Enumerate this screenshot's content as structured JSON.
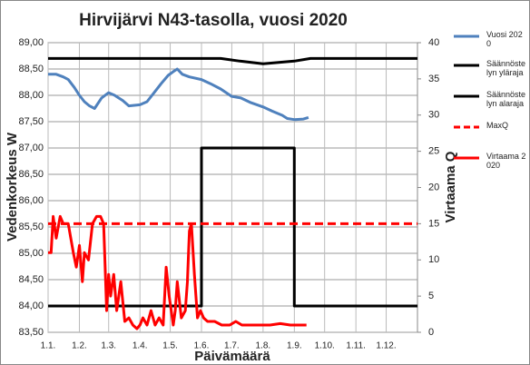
{
  "chart_data": {
    "type": "line",
    "title": "Hirvijärvi  N43-tasolla,  vuosi 2020",
    "x_label": "Päivämäärä",
    "y_label": "Vedenkorkeus W",
    "y2_label": "Virtaama Q",
    "xlim": [
      0,
      366
    ],
    "xticks": [
      {
        "value": 0,
        "label": "1.1."
      },
      {
        "value": 31,
        "label": "1.2."
      },
      {
        "value": 60,
        "label": "1.3."
      },
      {
        "value": 91,
        "label": "1.4."
      },
      {
        "value": 121,
        "label": "1.5."
      },
      {
        "value": 152,
        "label": "1.6."
      },
      {
        "value": 182,
        "label": "1.7."
      },
      {
        "value": 213,
        "label": "1.8."
      },
      {
        "value": 244,
        "label": "1.9."
      },
      {
        "value": 274,
        "label": "1.10."
      },
      {
        "value": 305,
        "label": "1.11."
      },
      {
        "value": 335,
        "label": "1.12."
      }
    ],
    "ylim": [
      83.5,
      89
    ],
    "yticks": [
      {
        "value": 83.5,
        "label": "83,50"
      },
      {
        "value": 84,
        "label": "84,00"
      },
      {
        "value": 84.5,
        "label": "84,50"
      },
      {
        "value": 85,
        "label": "85,00"
      },
      {
        "value": 85.5,
        "label": "85,50"
      },
      {
        "value": 86,
        "label": "86,00"
      },
      {
        "value": 86.5,
        "label": "86,50"
      },
      {
        "value": 87,
        "label": "87,00"
      },
      {
        "value": 87.5,
        "label": "87,50"
      },
      {
        "value": 88,
        "label": "88,00"
      },
      {
        "value": 88.5,
        "label": "88,50"
      },
      {
        "value": 89,
        "label": "89,00"
      }
    ],
    "y2lim": [
      0,
      40
    ],
    "y2ticks": [
      0,
      5,
      10,
      15,
      20,
      25,
      30,
      35,
      40
    ],
    "grid": true,
    "series": [
      {
        "name": "Vuosi 2020",
        "color": "#4f81bd",
        "axis": "y",
        "x": [
          0,
          8,
          15,
          20,
          26,
          31,
          36,
          41,
          46,
          53,
          60,
          66,
          70,
          74,
          80,
          91,
          98,
          105,
          112,
          119,
          124,
          128,
          133,
          140,
          152,
          161,
          171,
          182,
          191,
          201,
          213,
          222,
          232,
          237,
          244,
          253,
          258
        ],
        "values": [
          88.4,
          88.4,
          88.35,
          88.3,
          88.15,
          88.0,
          87.88,
          87.8,
          87.75,
          87.95,
          88.05,
          88.0,
          87.95,
          87.9,
          87.8,
          87.82,
          87.88,
          88.05,
          88.22,
          88.38,
          88.45,
          88.5,
          88.4,
          88.35,
          88.3,
          88.22,
          88.12,
          87.98,
          87.95,
          87.86,
          87.78,
          87.7,
          87.62,
          87.56,
          87.54,
          87.55,
          87.58
        ]
      },
      {
        "name": "Säännöstelyn yläraja",
        "color": "#000000",
        "axis": "y",
        "x": [
          0,
          171,
          190,
          213,
          244,
          260,
          366
        ],
        "values": [
          88.7,
          88.7,
          88.65,
          88.6,
          88.65,
          88.7,
          88.7
        ]
      },
      {
        "name": "Säännöstelyn alaraja",
        "color": "#000000",
        "axis": "y",
        "x": [
          0,
          152,
          152,
          244,
          244,
          366
        ],
        "values": [
          84,
          84,
          87,
          87,
          84,
          84
        ]
      },
      {
        "name": "MaxQ",
        "color": "#ff0000",
        "axis": "y2",
        "dashed": true,
        "x": [
          0,
          366
        ],
        "values": [
          15,
          15
        ]
      },
      {
        "name": "Virtaama 2020",
        "color": "#ff0000",
        "axis": "y2",
        "x": [
          0,
          3,
          5,
          8,
          12,
          15,
          20,
          25,
          28,
          31,
          34,
          36,
          40,
          44,
          48,
          52,
          55,
          58,
          60,
          62,
          65,
          68,
          72,
          76,
          80,
          84,
          88,
          91,
          94,
          98,
          102,
          106,
          110,
          114,
          117,
          120,
          124,
          126,
          128,
          132,
          136,
          138,
          140,
          142,
          145,
          148,
          151,
          154,
          158,
          165,
          172,
          180,
          186,
          192,
          200,
          210,
          220,
          230,
          240,
          250,
          256
        ],
        "values": [
          11,
          11,
          16,
          13,
          16,
          15,
          15,
          11,
          9,
          12,
          7,
          11,
          10,
          15,
          16,
          16,
          15,
          3,
          8,
          5,
          8,
          3,
          7,
          1.5,
          2,
          1,
          0.5,
          1,
          2,
          1,
          3,
          1,
          2,
          1,
          9,
          5,
          1,
          3,
          7,
          2,
          3,
          7,
          14,
          15,
          8,
          2,
          3,
          2,
          1.5,
          1.5,
          1,
          1,
          1.5,
          1,
          1,
          1,
          1,
          1.2,
          1,
          1,
          1
        ]
      }
    ]
  }
}
